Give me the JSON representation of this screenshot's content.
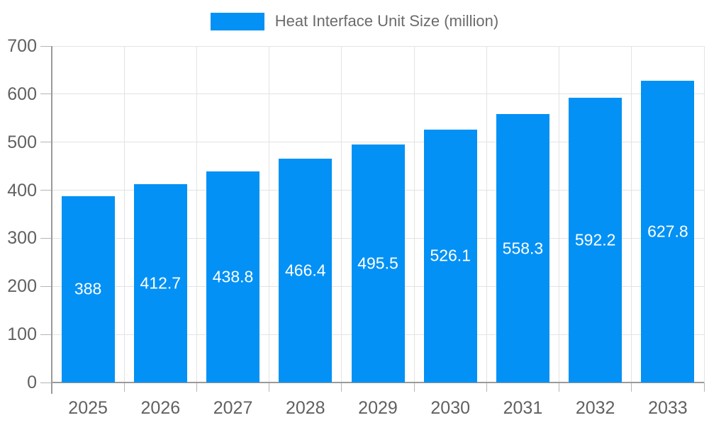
{
  "legend": {
    "label": "Heat Interface Unit Size (million)"
  },
  "colors": {
    "bar": "#0391f5",
    "axis": "#9a9a9a",
    "tick": "#b5b5b5",
    "grid": "#e3e3e3",
    "axis_text": "#616161",
    "legend_text": "#6b6b6b",
    "value_label_text": "#ffffff",
    "background": "#ffffff"
  },
  "chart_data": {
    "type": "bar",
    "title": "",
    "xlabel": "",
    "ylabel": "",
    "categories": [
      "2025",
      "2026",
      "2027",
      "2028",
      "2029",
      "2030",
      "2031",
      "2032",
      "2033"
    ],
    "series": [
      {
        "name": "Heat Interface Unit Size (million)",
        "values": [
          388,
          412.7,
          438.8,
          466.4,
          495.5,
          526.1,
          558.3,
          592.2,
          627.8
        ]
      }
    ],
    "value_labels": [
      "388",
      "412.7",
      "438.8",
      "466.4",
      "495.5",
      "526.1",
      "558.3",
      "592.2",
      "627.8"
    ],
    "ylim": [
      0,
      700
    ],
    "ytick_interval": 100,
    "ytick_labels": [
      "0",
      "100",
      "200",
      "300",
      "400",
      "500",
      "600",
      "700"
    ],
    "grid": "horizontal and vertical, light gray",
    "legend_position": "top-center",
    "value_label_position": "center-of-bar"
  }
}
